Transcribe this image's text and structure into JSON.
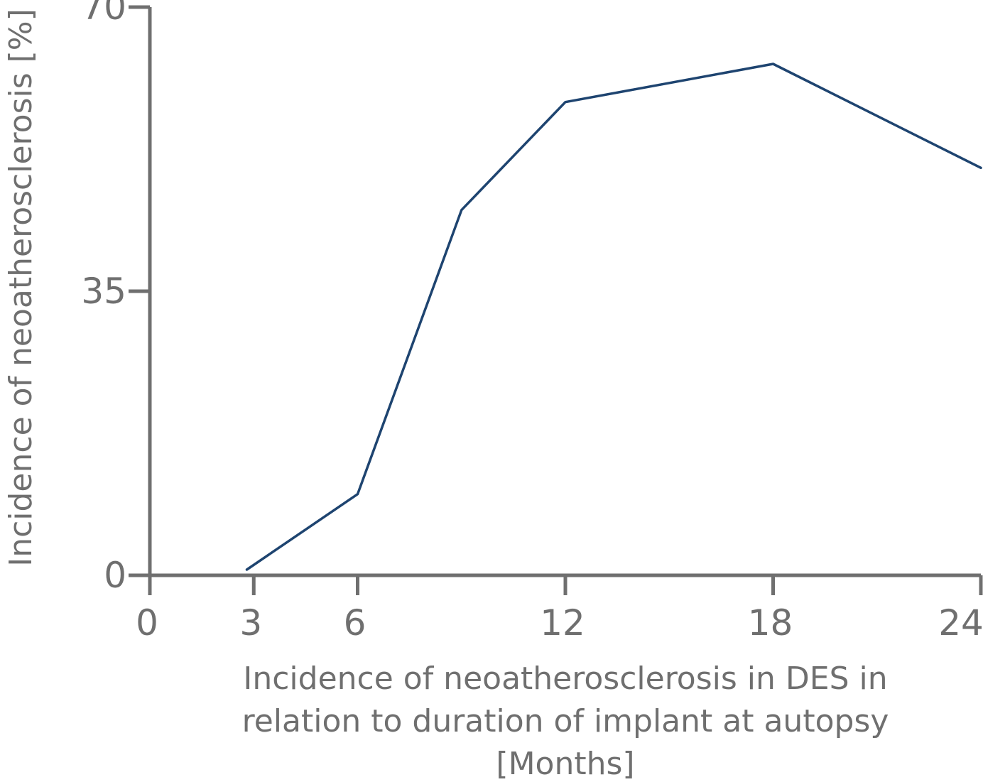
{
  "chart_data": {
    "type": "line",
    "title": "",
    "xlabel_lines": [
      "Incidence of neoatherosclerosis in DES in",
      "relation to duration of implant at autopsy",
      "[Months]"
    ],
    "ylabel": "Incidence of neoatherosclerosis [%]",
    "xlim": [
      0,
      24
    ],
    "ylim": [
      0,
      70
    ],
    "x_ticks": [
      "0",
      "3",
      "6",
      "12",
      "18",
      "24"
    ],
    "y_ticks": [
      "0",
      "35",
      "70"
    ],
    "series": [
      {
        "color": "#1e4470",
        "points": [
          {
            "x": 2.8,
            "y": 0.7
          },
          {
            "x": 6.0,
            "y": 10.0
          },
          {
            "x": 9.0,
            "y": 45.0
          },
          {
            "x": 12.0,
            "y": 58.3
          },
          {
            "x": 18.0,
            "y": 63.0
          },
          {
            "x": 24.0,
            "y": 50.2
          }
        ]
      }
    ],
    "grid": false,
    "legend": "none"
  }
}
